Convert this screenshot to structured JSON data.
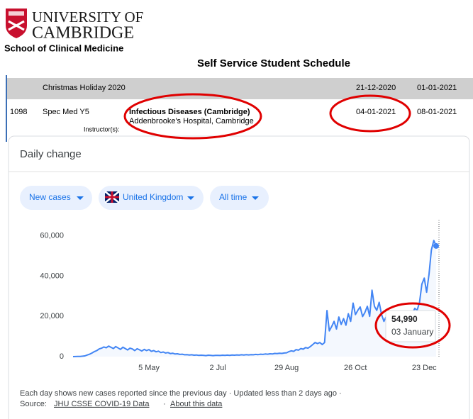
{
  "header": {
    "university_line1": "UNIVERSITY OF",
    "university_line2": "CAMBRIDGE",
    "school": "School of Clinical Medicine",
    "page_title": "Self Service Student Schedule"
  },
  "schedule": {
    "rows": [
      {
        "title": "Christmas Holiday 2020",
        "start": "21-12-2020",
        "end": "01-01-2021"
      },
      {
        "id": "1098",
        "course": "Spec Med Y5",
        "title": "Infectious Diseases (Cambridge)",
        "location": "Addenbrooke's Hospital, Cambridge",
        "start": "04-01-2021",
        "end": "08-01-2021",
        "instructor_label": "Instructor(s):"
      }
    ]
  },
  "card": {
    "filters": [
      "New cases",
      "United Kingdom",
      "All time"
    ],
    "footnote": "Each day shows new cases reported since the previous day · Updated less than 2 days ago ·",
    "source_label": "Source:",
    "source_link": "JHU CSSE COVID-19 Data",
    "separator": "·",
    "about_link": "About this data"
  },
  "chart_data": {
    "type": "line",
    "title": "Daily change",
    "color": "#4285f4",
    "categories": [
      null,
      null,
      null,
      null,
      null,
      null,
      null,
      null,
      null,
      null,
      null,
      null,
      null,
      null,
      null,
      null,
      null,
      null,
      null,
      null,
      null,
      null,
      null,
      null,
      null,
      null,
      null,
      null,
      null,
      null,
      null,
      null,
      "5 May",
      null,
      null,
      null,
      null,
      null,
      null,
      null,
      null,
      null,
      null,
      null,
      null,
      null,
      null,
      null,
      null,
      null,
      null,
      null,
      null,
      null,
      null,
      null,
      null,
      null,
      null,
      null,
      null,
      "2 Jul",
      null,
      null,
      null,
      null,
      null,
      null,
      null,
      null,
      null,
      null,
      null,
      null,
      null,
      null,
      null,
      null,
      null,
      null,
      null,
      null,
      null,
      null,
      null,
      null,
      null,
      null,
      null,
      null,
      "29 Aug",
      null,
      null,
      null,
      null,
      null,
      null,
      null,
      null,
      null,
      null,
      null,
      null,
      null,
      null,
      null,
      null,
      null,
      null,
      null,
      null,
      null,
      null,
      null,
      null,
      null,
      null,
      null,
      null,
      "26 Oct",
      null,
      null,
      null,
      null,
      null,
      null,
      null,
      null,
      null,
      null,
      null,
      null,
      null,
      null,
      null,
      null,
      null,
      null,
      null,
      null,
      null,
      null,
      null,
      null,
      null,
      null,
      null,
      null,
      "23 Dec",
      null,
      null,
      null,
      null,
      null
    ],
    "values": [
      10,
      30,
      60,
      120,
      200,
      350,
      800,
      1200,
      1800,
      2500,
      3000,
      3800,
      4200,
      4800,
      4400,
      5200,
      4600,
      4000,
      5000,
      4300,
      3600,
      4700,
      4000,
      3300,
      4200,
      3800,
      3000,
      3900,
      3400,
      2800,
      3600,
      3000,
      3500,
      2600,
      3000,
      2400,
      2700,
      2000,
      2300,
      1800,
      2000,
      1500,
      1700,
      1300,
      1400,
      1100,
      1200,
      900,
      1000,
      800,
      900,
      700,
      800,
      600,
      700,
      600,
      500,
      700,
      600,
      500,
      650,
      600,
      550,
      700,
      600,
      750,
      650,
      800,
      700,
      850,
      750,
      900,
      800,
      950,
      850,
      1000,
      900,
      1100,
      1000,
      1200,
      1100,
      1300,
      1200,
      1400,
      1300,
      1600,
      1500,
      1700,
      1600,
      1800,
      1900,
      2500,
      2900,
      2600,
      3500,
      3200,
      4000,
      3700,
      4500,
      4200,
      5000,
      6000,
      7000,
      6500,
      7000,
      6000,
      7000,
      22900,
      12800,
      15000,
      17500,
      13700,
      19700,
      16000,
      18900,
      15600,
      21300,
      17500,
      26600,
      20900,
      23000,
      24700,
      19900,
      22000,
      25000,
      20000,
      33000,
      25000,
      23000,
      27000,
      21000,
      17500,
      20000,
      16000,
      14000,
      17000,
      15000,
      12000,
      16000,
      14500,
      18000,
      17000,
      20000,
      21500,
      24000,
      23000,
      27000,
      36000,
      39000,
      32000,
      41000,
      53000,
      57700,
      54990
    ],
    "ylim": [
      0,
      68000
    ],
    "yticks": [
      0,
      {
        "value": 20000,
        "label": "20,000"
      },
      {
        "value": 40000,
        "label": "40,000"
      },
      {
        "value": 60000,
        "label": "60,000"
      }
    ],
    "tooltip": {
      "value": 54990,
      "label": "54,990",
      "date": "03 January"
    }
  }
}
